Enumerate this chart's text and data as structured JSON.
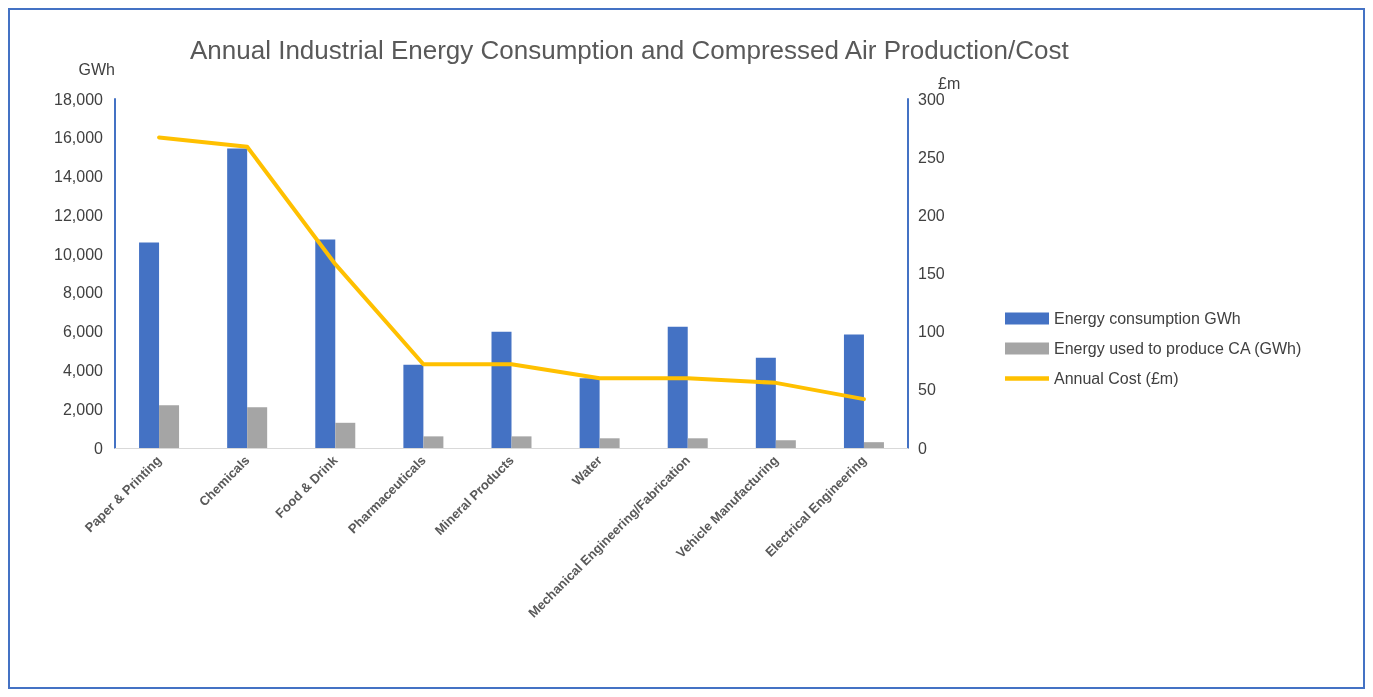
{
  "chart_data": {
    "type": "bar",
    "title": "Annual Industrial Energy Consumption and Compressed Air Production/Cost",
    "ylabel": "GWh",
    "y2label": "£m",
    "categories": [
      "Paper & Printing",
      "Chemicals",
      "Food & Drink",
      "Pharmaceuticals",
      "Mineral Products",
      "Water",
      "Mechanical Engineering/Fabrication",
      "Vehicle Manufacturing",
      "Electrical Engineering"
    ],
    "series": [
      {
        "name": "Energy consumption GWh",
        "color": "#4472c4",
        "values": [
          10600,
          15450,
          10750,
          4300,
          6000,
          3600,
          6250,
          4650,
          5850
        ]
      },
      {
        "name": "Energy used to produce CA (GWh)",
        "color": "#a5a5a5",
        "values": [
          2200,
          2100,
          1300,
          600,
          600,
          500,
          500,
          400,
          300
        ]
      },
      {
        "name": "Annual Cost (£m)",
        "type": "line",
        "axis": "y2",
        "color": "#ffc000",
        "values": [
          267,
          259,
          158,
          72,
          72,
          60,
          60,
          56,
          42
        ]
      }
    ],
    "ylim": [
      0,
      18000
    ],
    "yticks": [
      0,
      {
        "value": 2000,
        "label": "2,000"
      },
      {
        "value": 4000,
        "label": "4,000"
      },
      {
        "value": 6000,
        "label": "6,000"
      },
      {
        "value": 8000,
        "label": "8,000"
      },
      {
        "value": 10000,
        "label": "10,000"
      },
      {
        "value": 12000,
        "label": "12,000"
      },
      {
        "value": 14000,
        "label": "14,000"
      },
      {
        "value": 16000,
        "label": "16,000"
      },
      {
        "value": 18000,
        "label": "18,000"
      }
    ],
    "y2lim": [
      0,
      300
    ],
    "y2ticks": [
      0,
      50,
      100,
      150,
      200,
      250,
      300
    ],
    "grid": false,
    "legend": "right",
    "marker": "none"
  }
}
